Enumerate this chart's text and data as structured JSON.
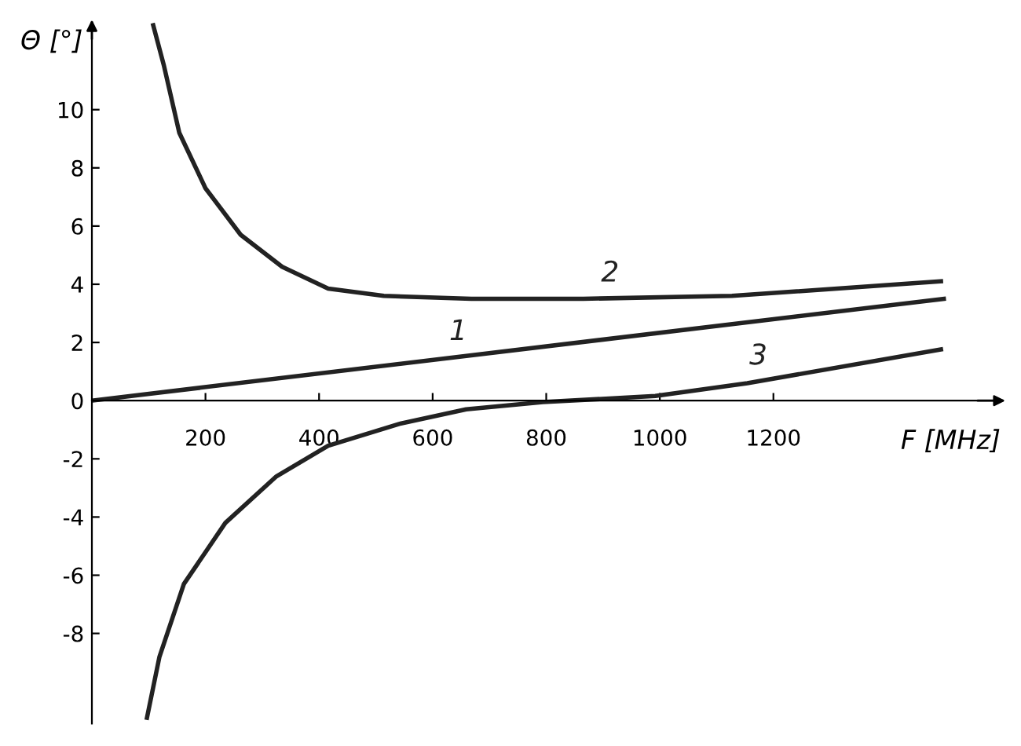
{
  "chart_data": {
    "type": "line",
    "xlabel": "F [MHz]",
    "ylabel": "Θ [°]",
    "series": [
      {
        "name": "1",
        "color": "#222222",
        "x": [
          0,
          1500
        ],
        "values": [
          0,
          3.5
        ]
      },
      {
        "name": "2",
        "color": "#222222",
        "x": [
          108,
          127,
          154,
          200,
          262,
          335,
          416,
          514,
          668,
          865,
          1127,
          1495
        ],
        "values": [
          12.9,
          11.5,
          9.2,
          7.3,
          5.7,
          4.6,
          3.85,
          3.6,
          3.5,
          3.5,
          3.6,
          4.1
        ]
      },
      {
        "name": "3",
        "color": "#222222",
        "x": [
          97,
          119,
          162,
          235,
          325,
          416,
          541,
          659,
          794,
          992,
          1154,
          1495
        ],
        "values": [
          -10.9,
          -8.8,
          -6.3,
          -4.2,
          -2.6,
          -1.55,
          -0.8,
          -0.3,
          -0.05,
          0.16,
          0.6,
          1.76
        ]
      }
    ],
    "xlim": [
      0,
      1600
    ],
    "ylim": [
      -11.1,
      13
    ],
    "xticks": [
      200,
      400,
      600,
      800,
      1000,
      1200
    ],
    "yticks": [
      -8,
      -6,
      -4,
      -2,
      0,
      2,
      4,
      6,
      8,
      10
    ],
    "grid": false,
    "legend": false,
    "line_style": "solid",
    "marker": "none"
  }
}
